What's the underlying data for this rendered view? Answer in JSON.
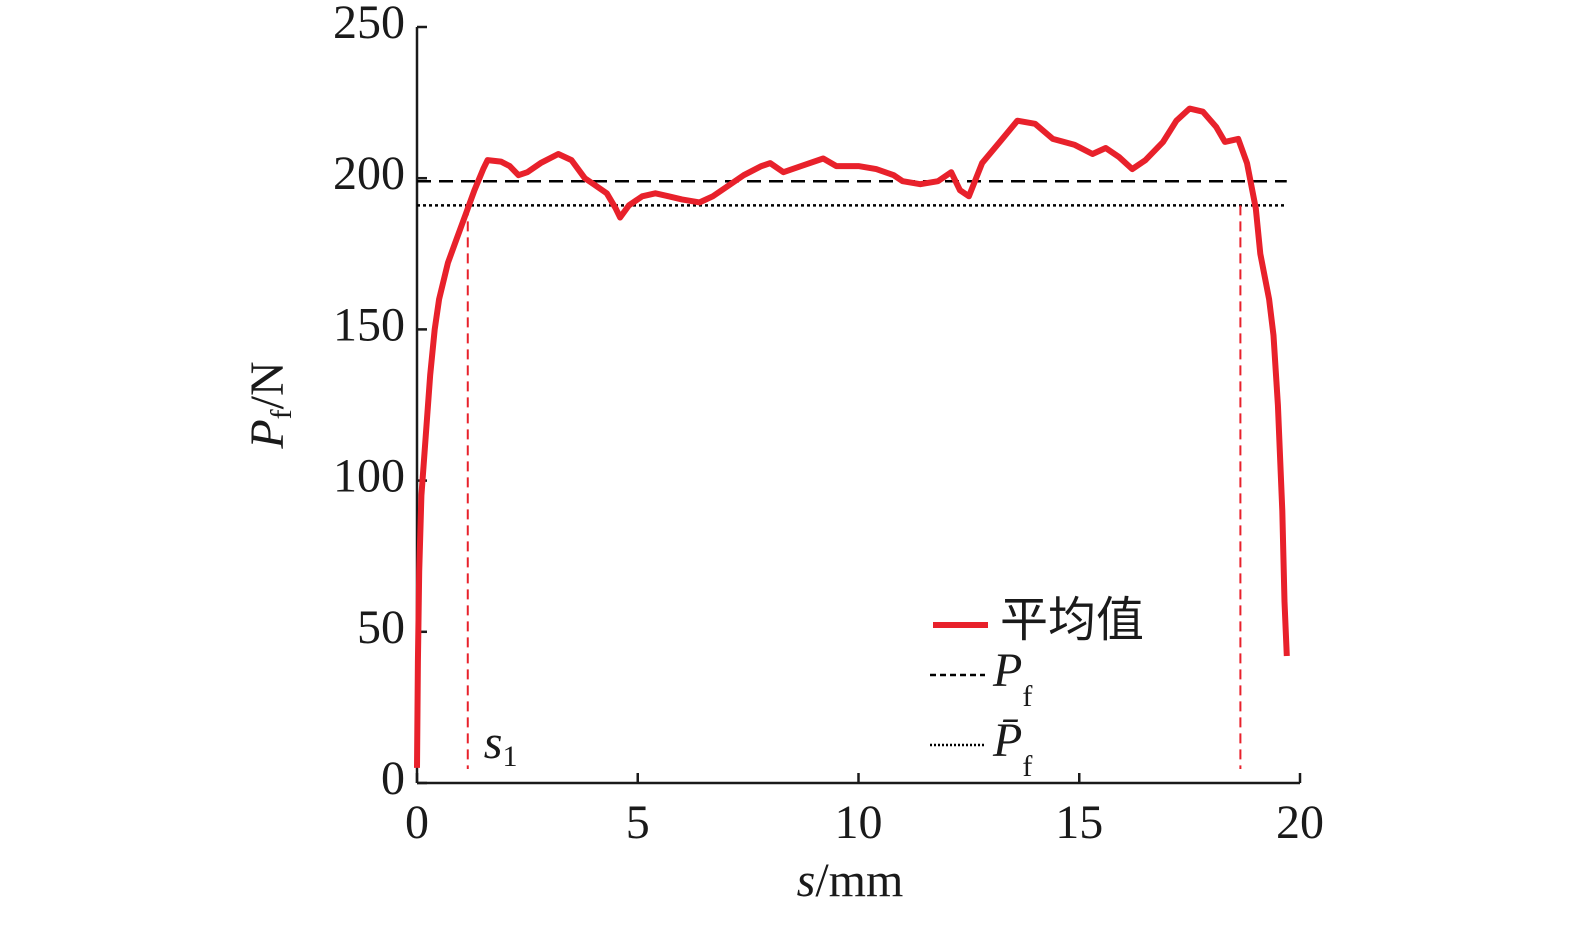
{
  "chart_data": {
    "type": "line",
    "ylabel": {
      "base": "P",
      "sub": "f",
      "unit": "/N"
    },
    "xlabel": {
      "base": "s",
      "unit": "/mm"
    },
    "xlim": [
      0,
      20
    ],
    "xticks": [
      0,
      5,
      10,
      15,
      20
    ],
    "ylim": [
      0,
      250
    ],
    "yticks": [
      0,
      50,
      100,
      150,
      200,
      250
    ],
    "series": [
      {
        "name": "平均值",
        "color": "#e8212b",
        "x": [
          0.0,
          0.02,
          0.05,
          0.1,
          0.2,
          0.3,
          0.4,
          0.5,
          0.7,
          0.9,
          1.1,
          1.3,
          1.5,
          1.6,
          1.9,
          2.1,
          2.3,
          2.5,
          2.8,
          3.2,
          3.5,
          3.8,
          4.0,
          4.3,
          4.5,
          4.6,
          4.8,
          5.1,
          5.4,
          5.7,
          6.0,
          6.4,
          6.7,
          7.0,
          7.4,
          7.8,
          8.0,
          8.3,
          8.7,
          9.2,
          9.5,
          10.0,
          10.4,
          10.8,
          11.0,
          11.4,
          11.8,
          12.1,
          12.3,
          12.5,
          12.8,
          13.2,
          13.6,
          14.0,
          14.4,
          14.9,
          15.3,
          15.6,
          15.9,
          16.2,
          16.5,
          16.9,
          17.2,
          17.5,
          17.8,
          18.1,
          18.3,
          18.6,
          18.8,
          19.0,
          19.1,
          19.3,
          19.4,
          19.5,
          19.6,
          19.65,
          19.7
        ],
        "values": [
          5,
          40,
          70,
          95,
          115,
          135,
          150,
          160,
          172,
          180,
          188,
          196,
          203,
          206,
          205.5,
          204,
          201,
          202,
          205,
          208,
          206,
          200,
          198,
          195,
          190,
          187,
          191,
          194,
          195,
          194,
          193,
          192,
          194,
          197,
          201,
          204,
          205,
          202,
          204,
          206.5,
          204,
          204,
          203,
          201,
          199,
          198,
          199,
          202,
          196,
          194,
          205,
          212,
          219,
          218,
          213,
          211,
          208,
          210,
          207,
          203,
          206,
          212,
          219,
          223,
          222,
          217,
          212,
          213,
          205,
          190,
          175,
          160,
          148,
          125,
          90,
          60,
          42
        ]
      }
    ],
    "reference_lines": [
      {
        "name": {
          "base": "P",
          "sub": "f"
        },
        "value": 199,
        "style": "dashed",
        "color": "#000000"
      },
      {
        "name": {
          "base": "P̄",
          "sub": "f"
        },
        "value": 191,
        "style": "dotted",
        "color": "#000000"
      }
    ],
    "markers": [
      {
        "x": 1.15,
        "label": {
          "base": "s",
          "sub": "1"
        },
        "color": "#e8212b"
      },
      {
        "x": 18.65,
        "color": "#e8212b"
      }
    ]
  }
}
